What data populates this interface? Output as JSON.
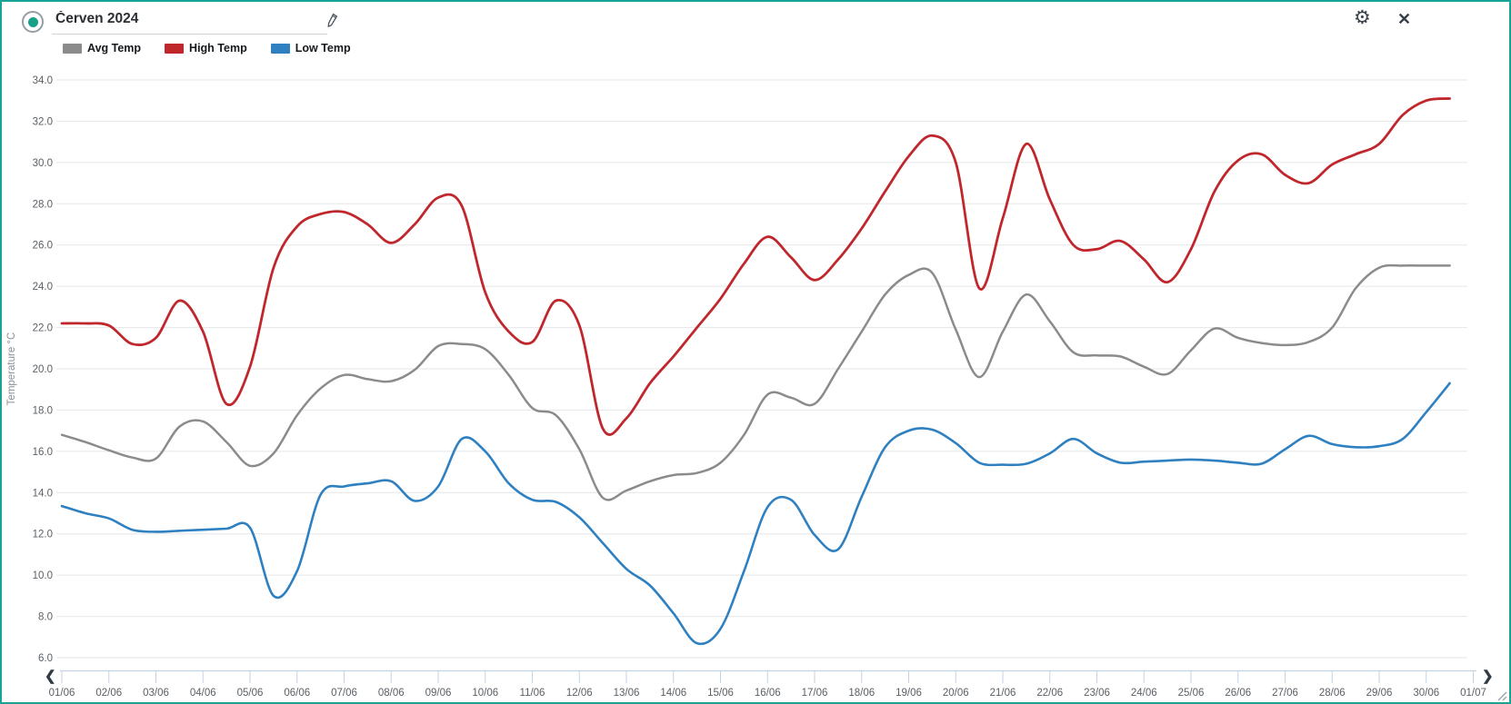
{
  "window": {
    "title": "Červen 2024"
  },
  "toolbar": {
    "edit_icon": "pencil-icon",
    "settings_icon": "gear-icon",
    "close_icon": "close-icon",
    "close_glyph": "✕",
    "gear_glyph": "⚙",
    "scroll_left_glyph": "❮",
    "scroll_right_glyph": "❯"
  },
  "legend": [
    {
      "label": "Avg Temp",
      "color": "#8b8b8b"
    },
    {
      "label": "High Temp",
      "color": "#c0272d"
    },
    {
      "label": "Low Temp",
      "color": "#2e80c0"
    }
  ],
  "chart_data": {
    "type": "line",
    "title": "Červen 2024",
    "xlabel": "",
    "ylabel": "Temperature °C",
    "ylim": [
      6,
      34
    ],
    "y_tick_step": 2,
    "y_ticks": [
      "34.0",
      "32.0",
      "30.0",
      "28.0",
      "26.0",
      "24.0",
      "22.0",
      "20.0",
      "18.0",
      "16.0",
      "14.0",
      "12.0",
      "10.0",
      "8.0",
      "6.0"
    ],
    "x_ticks": [
      "01/06",
      "02/06",
      "03/06",
      "04/06",
      "05/06",
      "06/06",
      "07/06",
      "08/06",
      "09/06",
      "10/06",
      "11/06",
      "12/06",
      "13/06",
      "14/06",
      "15/06",
      "16/06",
      "17/06",
      "18/06",
      "19/06",
      "20/06",
      "21/06",
      "22/06",
      "23/06",
      "24/06",
      "25/06",
      "26/06",
      "27/06",
      "28/06",
      "29/06",
      "30/06",
      "01/07"
    ],
    "x_start_day": 1,
    "x_step_days": 0.5,
    "x_end_day": 30.5,
    "grid": "horizontal",
    "legend_position": "top-left",
    "smoothing": "spline",
    "series": [
      {
        "name": "High Temp",
        "color": "#c0272d",
        "width": 2.8,
        "values": [
          22.2,
          22.2,
          22.1,
          21.2,
          21.5,
          23.3,
          21.8,
          18.3,
          20.1,
          24.9,
          26.9,
          27.5,
          27.6,
          27.0,
          26.1,
          27.0,
          28.3,
          27.9,
          23.7,
          21.8,
          21.3,
          23.3,
          22.1,
          17.1,
          17.6,
          19.3,
          20.6,
          22.0,
          23.4,
          25.1,
          26.4,
          25.4,
          24.3,
          25.3,
          26.8,
          28.6,
          30.3,
          31.3,
          30.0,
          23.9,
          27.3,
          30.9,
          28.2,
          26.0,
          25.8,
          26.2,
          25.3,
          24.2,
          25.8,
          28.6,
          30.1,
          30.4,
          29.4,
          29.0,
          29.9,
          30.4,
          30.9,
          32.3,
          33.0,
          33.1
        ]
      },
      {
        "name": "Avg Temp",
        "color": "#8b8b8b",
        "width": 2.5,
        "values": [
          16.8,
          16.45,
          16.05,
          15.7,
          15.65,
          17.2,
          17.45,
          16.45,
          15.3,
          15.9,
          17.75,
          19.05,
          19.7,
          19.5,
          19.4,
          19.95,
          21.1,
          21.2,
          20.95,
          19.7,
          18.1,
          17.75,
          16.1,
          13.75,
          14.1,
          14.55,
          14.85,
          14.95,
          15.45,
          16.8,
          18.75,
          18.6,
          18.3,
          20.0,
          21.8,
          23.6,
          24.55,
          24.65,
          21.9,
          19.6,
          21.8,
          23.6,
          22.3,
          20.8,
          20.65,
          20.6,
          20.1,
          19.75,
          20.9,
          21.95,
          21.5,
          21.25,
          21.15,
          21.3,
          22.0,
          23.9,
          24.9,
          25.0,
          25.0,
          25.0
        ]
      },
      {
        "name": "Low Temp",
        "color": "#2e80c0",
        "width": 2.6,
        "values": [
          13.35,
          13.0,
          12.75,
          12.2,
          12.1,
          12.15,
          12.2,
          12.25,
          12.3,
          9.0,
          10.2,
          13.9,
          14.3,
          14.45,
          14.55,
          13.6,
          14.3,
          16.6,
          16.0,
          14.45,
          13.65,
          13.55,
          12.8,
          11.55,
          10.3,
          9.5,
          8.15,
          6.7,
          7.4,
          10.2,
          13.3,
          13.65,
          11.95,
          11.25,
          13.8,
          16.2,
          17.0,
          17.05,
          16.4,
          15.45,
          15.35,
          15.4,
          15.9,
          16.6,
          15.9,
          15.45,
          15.5,
          15.55,
          15.6,
          15.55,
          15.45,
          15.4,
          16.1,
          16.75,
          16.35,
          16.2,
          16.25,
          16.6,
          17.9,
          19.3
        ]
      }
    ]
  }
}
